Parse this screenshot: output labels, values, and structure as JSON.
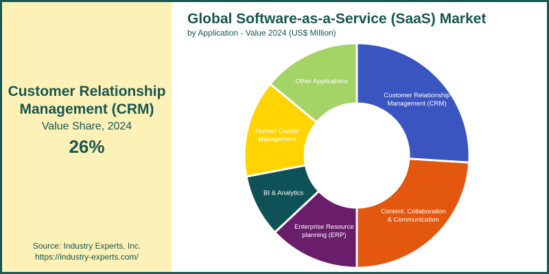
{
  "kpi": {
    "title_line1": "Customer Relationship",
    "title_line2": "Management (CRM)",
    "subtitle": "Value Share, 2024",
    "value": "26%"
  },
  "source": {
    "line1": "Source: Industry Experts, Inc.",
    "line2": "https://industry-experts.com/"
  },
  "chart_data": {
    "type": "pie",
    "title": "Global Software-as-a-Service (SaaS) Market",
    "subtitle": "by Application - Value 2024 (US$ Million)",
    "donut": true,
    "slices": [
      {
        "label_lines": [
          "Customer Relationship",
          "Management (CRM)"
        ],
        "value": 26,
        "color": "#3a55c0",
        "label_color": "#ffffff"
      },
      {
        "label_lines": [
          "Content, Collaboration",
          "& Communication"
        ],
        "value": 24,
        "color": "#e3570f",
        "label_color": "#ffffff"
      },
      {
        "label_lines": [
          "Enterprise Resource",
          "planning (ERP)"
        ],
        "value": 13,
        "color": "#6a1d6b",
        "label_color": "#ffffff"
      },
      {
        "label_lines": [
          "BI & Analytics"
        ],
        "value": 9,
        "color": "#0e5257",
        "label_color": "#ffffff"
      },
      {
        "label_lines": [
          "Human Capital",
          "Management"
        ],
        "value": 14,
        "color": "#ffd400",
        "label_color": "#ffffff"
      },
      {
        "label_lines": [
          "Other Applications"
        ],
        "value": 14,
        "color": "#a4d465",
        "label_color": "#ffffff"
      }
    ]
  }
}
